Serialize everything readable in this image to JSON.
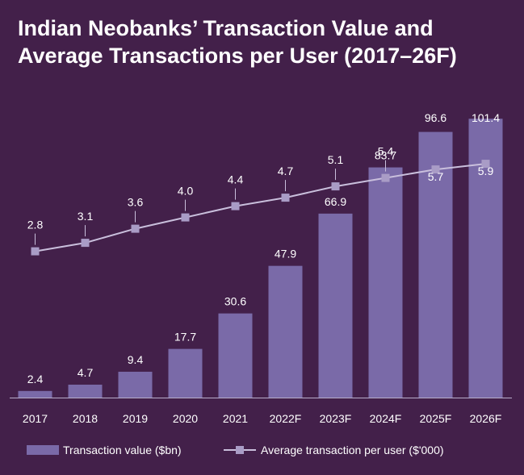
{
  "title_line1": "Indian Neobanks’ Transaction Value and",
  "title_line2": "Average Transactions per User (2017–26F)",
  "colors": {
    "background": "#43204a",
    "bar": "#7a6aa8",
    "line": "#c9bfdc",
    "marker": "#a99cc6",
    "text": "#ffffff"
  },
  "chart_data": {
    "type": "bar",
    "categories": [
      "2017",
      "2018",
      "2019",
      "2020",
      "2021",
      "2022F",
      "2023F",
      "2024F",
      "2025F",
      "2026F"
    ],
    "series": [
      {
        "name": "Transaction value ($bn)",
        "type": "bar",
        "values": [
          2.4,
          4.7,
          9.4,
          17.7,
          30.6,
          47.9,
          66.9,
          83.7,
          96.6,
          101.4
        ],
        "labels": [
          "2.4",
          "4.7",
          "9.4",
          "17.7",
          "30.6",
          "47.9",
          "66.9",
          "83.7",
          "96.6",
          "101.4"
        ]
      },
      {
        "name": "Average transaction per user ($'000)",
        "type": "line",
        "marker": "square",
        "values": [
          2.8,
          3.1,
          3.6,
          4.0,
          4.4,
          4.7,
          5.1,
          5.4,
          5.7,
          5.9
        ],
        "labels": [
          "2.8",
          "3.1",
          "3.6",
          "4.0",
          "4.4",
          "4.7",
          "5.1",
          "5.4",
          "5.7",
          "5.9"
        ]
      }
    ],
    "legend_position": "bottom",
    "grid": false,
    "y_axis_visible": false
  }
}
